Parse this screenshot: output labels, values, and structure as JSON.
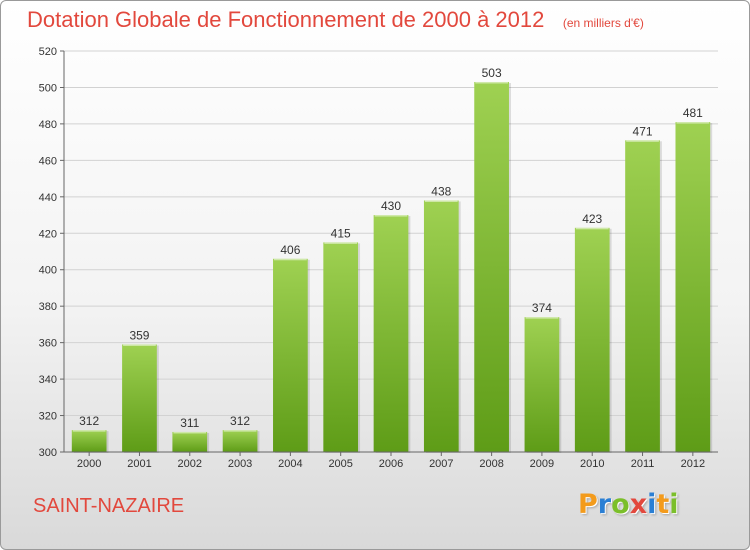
{
  "title": "Dotation Globale de Fonctionnement de 2000 à 2012",
  "subtitle": "(en milliers d'€)",
  "city": "SAINT-NAZAIRE",
  "logo": {
    "text": "Proxiti",
    "letter_colors": [
      "#f39b1c",
      "#2a7fd4",
      "#7bbf2a",
      "#e2483d",
      "#2a7fd4",
      "#f39b1c",
      "#7bbf2a"
    ]
  },
  "colors": {
    "accent": "#e2483d",
    "bar_light": "#9fd152",
    "bar_dark": "#5e9c17"
  },
  "chart_data": {
    "type": "bar",
    "categories": [
      "2000",
      "2001",
      "2002",
      "2003",
      "2004",
      "2005",
      "2006",
      "2007",
      "2008",
      "2009",
      "2010",
      "2011",
      "2012"
    ],
    "values": [
      312,
      359,
      311,
      312,
      406,
      415,
      430,
      438,
      503,
      374,
      423,
      471,
      481
    ],
    "title": "Dotation Globale de Fonctionnement de 2000 à 2012",
    "subtitle": "(en milliers d'€)",
    "xlabel": "",
    "ylabel": "",
    "ylim": [
      300,
      520
    ],
    "yticks": [
      300,
      320,
      340,
      360,
      380,
      400,
      420,
      440,
      460,
      480,
      500,
      520
    ],
    "grid": true,
    "legend": "none"
  }
}
